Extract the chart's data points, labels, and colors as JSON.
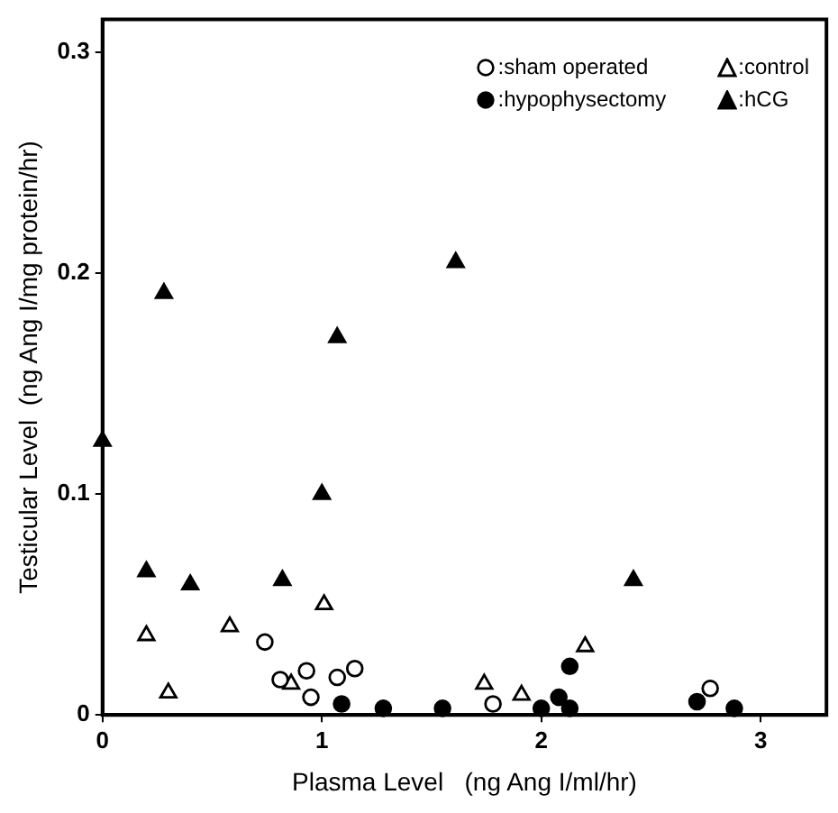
{
  "chart_data": {
    "type": "scatter",
    "xlabel": "Plasma Level   (ng Ang I/ml/hr)",
    "ylabel": "Testicular Level  (ng Ang I/mg protein/hr)",
    "xlim": [
      0,
      3.3
    ],
    "xticks": [
      0,
      1,
      2,
      3
    ],
    "ylim": [
      0,
      0.315
    ],
    "yticks": [
      0,
      0.1,
      0.2,
      0.3
    ],
    "grid": false,
    "legend": "top right",
    "series": [
      {
        "name": ":sham operated",
        "color": "#000000",
        "marker": "circle",
        "x": [
          0.74,
          0.81,
          0.93,
          0.95,
          1.07,
          1.15,
          1.78,
          2.77
        ],
        "values": [
          0.033,
          0.016,
          0.02,
          0.008,
          0.017,
          0.021,
          0.005,
          0.012
        ]
      },
      {
        "name": ":control",
        "color": "#000000",
        "marker": "triangle",
        "x": [
          0.2,
          0.3,
          0.58,
          1.01,
          0.86,
          1.74,
          1.91,
          2.2
        ],
        "values": [
          0.036,
          0.01,
          0.04,
          0.05,
          0.014,
          0.014,
          0.009,
          0.031
        ]
      },
      {
        "name": ":hypophysectomy",
        "color": "#000000",
        "marker": "circle",
        "x": [
          1.09,
          1.28,
          1.55,
          2.0,
          2.08,
          2.13,
          2.13,
          2.71,
          2.88
        ],
        "values": [
          0.005,
          0.003,
          0.003,
          0.003,
          0.008,
          0.003,
          0.022,
          0.006,
          0.003
        ]
      },
      {
        "name": ":hCG",
        "color": "#000000",
        "marker": "triangle",
        "x": [
          0,
          0.28,
          1.07,
          1.0,
          0.2,
          0.4,
          0.82,
          1.61,
          2.42
        ],
        "values": [
          0.124,
          0.191,
          0.171,
          0.1,
          0.065,
          0.059,
          0.061,
          0.205,
          0.061
        ]
      }
    ]
  }
}
